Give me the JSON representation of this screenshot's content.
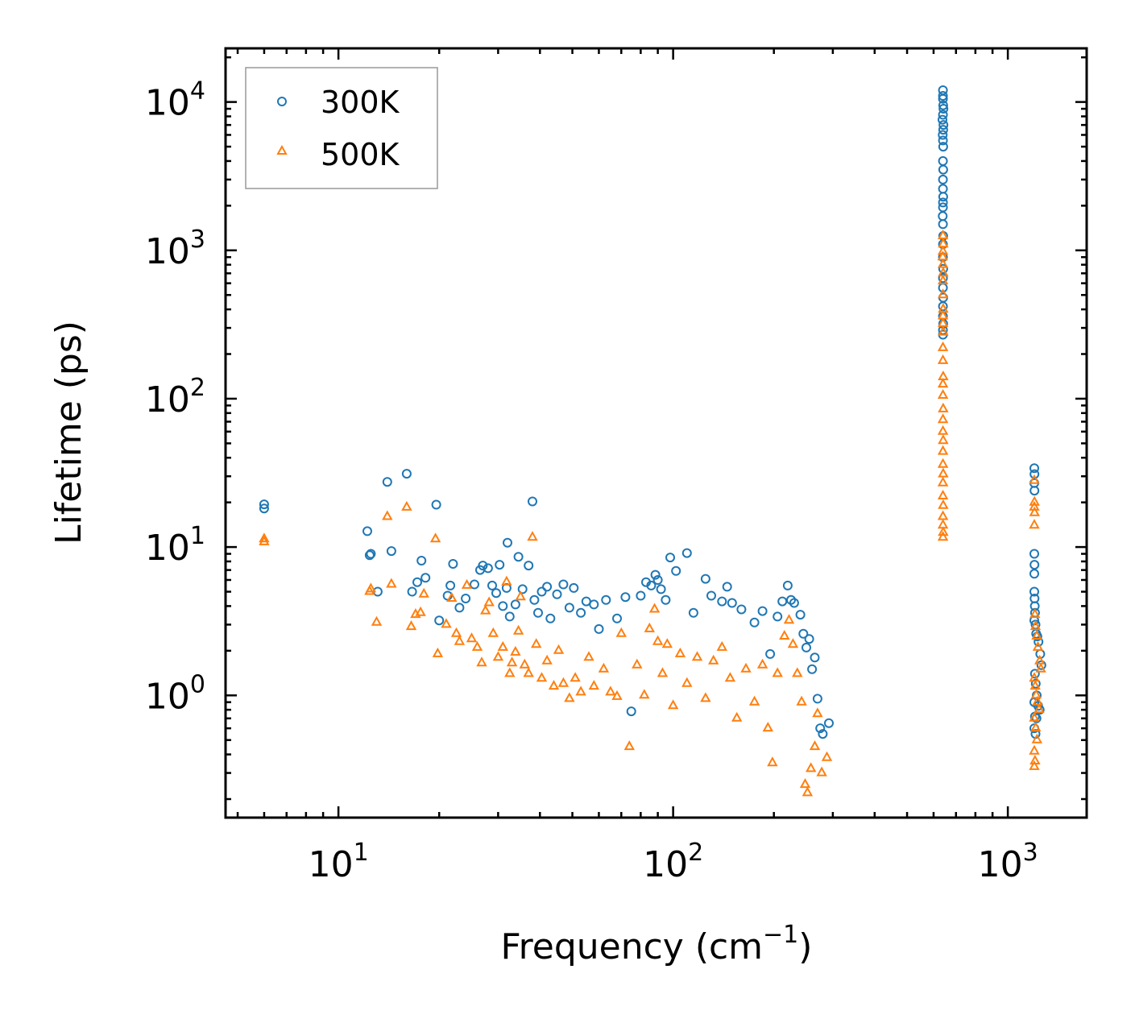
{
  "chart_data": {
    "type": "scatter",
    "title": "",
    "xlabel": "Frequency (cm",
    "xlabel_sup": "−1",
    "xlabel_suffix": ")",
    "ylabel": "Lifetime (ps)",
    "xscale": "log",
    "yscale": "log",
    "xlim": [
      4.6,
      1720
    ],
    "ylim": [
      0.15,
      23000
    ],
    "x_ticks": [
      {
        "value": 10,
        "base": "10",
        "exp": "1"
      },
      {
        "value": 100,
        "base": "10",
        "exp": "2"
      },
      {
        "value": 1000,
        "base": "10",
        "exp": "3"
      }
    ],
    "y_ticks": [
      {
        "value": 1,
        "base": "10",
        "exp": "0"
      },
      {
        "value": 10,
        "base": "10",
        "exp": "1"
      },
      {
        "value": 100,
        "base": "10",
        "exp": "2"
      },
      {
        "value": 1000,
        "base": "10",
        "exp": "3"
      },
      {
        "value": 10000,
        "base": "10",
        "exp": "4"
      }
    ],
    "legend": {
      "position": "top-left"
    },
    "series": [
      {
        "name": "300K",
        "marker": "circle",
        "color": "#1f77b4",
        "points": [
          [
            6.0,
            18.2
          ],
          [
            6.0,
            19.4
          ],
          [
            12.2,
            12.8
          ],
          [
            12.4,
            8.8
          ],
          [
            12.5,
            9.0
          ],
          [
            13.1,
            5.0
          ],
          [
            14.0,
            27.5
          ],
          [
            14.4,
            9.4
          ],
          [
            16.0,
            31.2
          ],
          [
            16.6,
            5.0
          ],
          [
            17.2,
            5.8
          ],
          [
            17.7,
            8.1
          ],
          [
            18.2,
            6.2
          ],
          [
            19.6,
            19.3
          ],
          [
            20.0,
            3.2
          ],
          [
            21.2,
            4.7
          ],
          [
            21.6,
            5.5
          ],
          [
            22.0,
            7.7
          ],
          [
            23.0,
            3.9
          ],
          [
            24.0,
            4.5
          ],
          [
            25.5,
            5.6
          ],
          [
            26.5,
            7.0
          ],
          [
            27.0,
            7.5
          ],
          [
            28.0,
            7.2
          ],
          [
            28.8,
            5.5
          ],
          [
            29.6,
            4.9
          ],
          [
            30.3,
            7.6
          ],
          [
            31.0,
            4.0
          ],
          [
            31.8,
            5.3
          ],
          [
            32.0,
            10.7
          ],
          [
            32.5,
            3.4
          ],
          [
            33.8,
            4.1
          ],
          [
            34.5,
            8.6
          ],
          [
            35.5,
            5.2
          ],
          [
            37.0,
            7.5
          ],
          [
            38.0,
            20.3
          ],
          [
            38.5,
            4.4
          ],
          [
            39.5,
            3.6
          ],
          [
            40.5,
            5.0
          ],
          [
            42.0,
            5.4
          ],
          [
            43.0,
            3.3
          ],
          [
            45.0,
            4.8
          ],
          [
            47.0,
            5.6
          ],
          [
            49.0,
            3.9
          ],
          [
            50.5,
            5.3
          ],
          [
            53.0,
            3.6
          ],
          [
            55.0,
            4.3
          ],
          [
            58.0,
            4.1
          ],
          [
            60.0,
            2.8
          ],
          [
            63.0,
            4.4
          ],
          [
            68.0,
            3.3
          ],
          [
            72.0,
            4.6
          ],
          [
            75.0,
            0.78
          ],
          [
            80.0,
            4.7
          ],
          [
            83.0,
            5.8
          ],
          [
            86.0,
            5.5
          ],
          [
            88.5,
            6.5
          ],
          [
            90.0,
            6.0
          ],
          [
            92.0,
            5.2
          ],
          [
            95.0,
            4.4
          ],
          [
            98.0,
            8.5
          ],
          [
            102.0,
            6.9
          ],
          [
            110.0,
            9.1
          ],
          [
            115.0,
            3.6
          ],
          [
            125.0,
            6.1
          ],
          [
            130.0,
            4.7
          ],
          [
            140.0,
            4.3
          ],
          [
            145.0,
            5.4
          ],
          [
            150.0,
            4.2
          ],
          [
            160.0,
            3.8
          ],
          [
            175.0,
            3.1
          ],
          [
            185.0,
            3.7
          ],
          [
            195.0,
            1.9
          ],
          [
            205.0,
            3.4
          ],
          [
            212.0,
            4.3
          ],
          [
            220.0,
            5.5
          ],
          [
            225.0,
            4.4
          ],
          [
            230.0,
            4.2
          ],
          [
            240.0,
            3.5
          ],
          [
            245.0,
            2.6
          ],
          [
            250.0,
            2.1
          ],
          [
            255.0,
            2.4
          ],
          [
            260.0,
            1.5
          ],
          [
            265.0,
            1.8
          ],
          [
            270.0,
            0.95
          ],
          [
            275.0,
            0.6
          ],
          [
            280.0,
            0.55
          ],
          [
            292.0,
            0.65
          ],
          [
            640.0,
            12000
          ],
          [
            640.0,
            11000
          ],
          [
            640.0,
            10500
          ],
          [
            641.0,
            9500
          ],
          [
            642.0,
            9000
          ],
          [
            640.0,
            8200
          ],
          [
            638.0,
            7600
          ],
          [
            642.0,
            7000
          ],
          [
            641.0,
            6500
          ],
          [
            639.0,
            6000
          ],
          [
            640.0,
            5500
          ],
          [
            641.0,
            5000
          ],
          [
            640.0,
            4000
          ],
          [
            641.0,
            3500
          ],
          [
            640.0,
            3000
          ],
          [
            640.0,
            2600
          ],
          [
            641.0,
            2300
          ],
          [
            640.0,
            2100
          ],
          [
            640.0,
            1950
          ],
          [
            639.0,
            1700
          ],
          [
            640.0,
            1500
          ],
          [
            641.0,
            1250
          ],
          [
            640.0,
            1100
          ],
          [
            640.0,
            900
          ],
          [
            641.0,
            750
          ],
          [
            640.0,
            650
          ],
          [
            640.0,
            560
          ],
          [
            641.0,
            480
          ],
          [
            640.0,
            420
          ],
          [
            640.0,
            360
          ],
          [
            641.0,
            320
          ],
          [
            640.0,
            290
          ],
          [
            640.0,
            270
          ],
          [
            1200.0,
            34
          ],
          [
            1201.0,
            31
          ],
          [
            1200.0,
            27
          ],
          [
            1201.0,
            24
          ],
          [
            1200.0,
            9.0
          ],
          [
            1201.0,
            7.6
          ],
          [
            1200.0,
            6.6
          ],
          [
            1200.0,
            5.0
          ],
          [
            1202.0,
            4.5
          ],
          [
            1204.0,
            4.0
          ],
          [
            1206.0,
            3.6
          ],
          [
            1200.0,
            3.2
          ],
          [
            1210.0,
            3.0
          ],
          [
            1215.0,
            2.6
          ],
          [
            1225.0,
            2.5
          ],
          [
            1235.0,
            2.3
          ],
          [
            1250.0,
            1.9
          ],
          [
            1260.0,
            1.6
          ],
          [
            1205.0,
            1.4
          ],
          [
            1212.0,
            1.2
          ],
          [
            1220.0,
            1.0
          ],
          [
            1200.0,
            0.9
          ],
          [
            1232.0,
            0.85
          ],
          [
            1245.0,
            0.8
          ],
          [
            1205.0,
            0.72
          ],
          [
            1218.0,
            0.7
          ],
          [
            1200.0,
            0.6
          ],
          [
            1210.0,
            0.55
          ]
        ]
      },
      {
        "name": "500K",
        "marker": "triangle",
        "color": "#ff7f0e",
        "points": [
          [
            6.0,
            10.8
          ],
          [
            6.0,
            11.3
          ],
          [
            12.4,
            5.0
          ],
          [
            12.5,
            5.2
          ],
          [
            13.0,
            3.1
          ],
          [
            14.0,
            16.0
          ],
          [
            14.4,
            5.6
          ],
          [
            16.0,
            18.5
          ],
          [
            16.5,
            2.9
          ],
          [
            17.0,
            3.5
          ],
          [
            17.6,
            3.6
          ],
          [
            18.0,
            4.8
          ],
          [
            19.5,
            11.3
          ],
          [
            19.8,
            1.9
          ],
          [
            21.0,
            3.0
          ],
          [
            21.8,
            4.5
          ],
          [
            22.5,
            2.6
          ],
          [
            23.0,
            2.3
          ],
          [
            24.2,
            5.5
          ],
          [
            25.0,
            2.4
          ],
          [
            26.0,
            2.1
          ],
          [
            26.8,
            1.65
          ],
          [
            27.5,
            3.7
          ],
          [
            28.2,
            4.2
          ],
          [
            29.0,
            2.6
          ],
          [
            30.0,
            1.8
          ],
          [
            31.0,
            2.1
          ],
          [
            31.8,
            5.8
          ],
          [
            32.5,
            1.4
          ],
          [
            33.0,
            1.65
          ],
          [
            33.8,
            1.95
          ],
          [
            34.5,
            2.7
          ],
          [
            35.0,
            4.6
          ],
          [
            36.0,
            1.6
          ],
          [
            37.0,
            1.4
          ],
          [
            38.0,
            11.6
          ],
          [
            39.0,
            2.2
          ],
          [
            40.5,
            1.3
          ],
          [
            42.0,
            1.7
          ],
          [
            44.0,
            1.15
          ],
          [
            45.5,
            2.0
          ],
          [
            47.0,
            1.2
          ],
          [
            49.0,
            0.95
          ],
          [
            51.0,
            1.3
          ],
          [
            53.0,
            1.05
          ],
          [
            56.0,
            1.8
          ],
          [
            58.0,
            1.15
          ],
          [
            62.0,
            1.5
          ],
          [
            65.0,
            1.05
          ],
          [
            68.0,
            0.98
          ],
          [
            70.0,
            2.6
          ],
          [
            74.0,
            0.45
          ],
          [
            78.0,
            1.6
          ],
          [
            82.0,
            1.0
          ],
          [
            85.0,
            2.8
          ],
          [
            88.0,
            3.8
          ],
          [
            90.0,
            2.3
          ],
          [
            93.0,
            1.4
          ],
          [
            96.0,
            2.2
          ],
          [
            100.0,
            0.85
          ],
          [
            105.0,
            1.9
          ],
          [
            110.0,
            1.2
          ],
          [
            118.0,
            1.8
          ],
          [
            125.0,
            0.95
          ],
          [
            132.0,
            1.7
          ],
          [
            140.0,
            2.1
          ],
          [
            148.0,
            1.3
          ],
          [
            155.0,
            0.7
          ],
          [
            165.0,
            1.5
          ],
          [
            175.0,
            0.9
          ],
          [
            185.0,
            1.6
          ],
          [
            192.0,
            0.6
          ],
          [
            198.0,
            0.35
          ],
          [
            205.0,
            1.4
          ],
          [
            215.0,
            2.5
          ],
          [
            222.0,
            3.2
          ],
          [
            228.0,
            2.2
          ],
          [
            235.0,
            1.4
          ],
          [
            242.0,
            0.9
          ],
          [
            248.0,
            0.25
          ],
          [
            252.0,
            0.22
          ],
          [
            258.0,
            0.32
          ],
          [
            265.0,
            0.45
          ],
          [
            270.0,
            0.75
          ],
          [
            278.0,
            0.3
          ],
          [
            288.0,
            0.38
          ],
          [
            640.0,
            1250
          ],
          [
            641.0,
            1100
          ],
          [
            640.0,
            980
          ],
          [
            639.0,
            900
          ],
          [
            640.0,
            800
          ],
          [
            641.0,
            700
          ],
          [
            640.0,
            620
          ],
          [
            640.0,
            500
          ],
          [
            641.0,
            400
          ],
          [
            640.0,
            360
          ],
          [
            640.0,
            320
          ],
          [
            641.0,
            280
          ],
          [
            640.0,
            220
          ],
          [
            640.0,
            180
          ],
          [
            641.0,
            140
          ],
          [
            640.0,
            125
          ],
          [
            640.0,
            105
          ],
          [
            641.0,
            85
          ],
          [
            640.0,
            72
          ],
          [
            640.0,
            60
          ],
          [
            641.0,
            52
          ],
          [
            640.0,
            44
          ],
          [
            640.0,
            36
          ],
          [
            641.0,
            31
          ],
          [
            640.0,
            27
          ],
          [
            640.0,
            22
          ],
          [
            641.0,
            19
          ],
          [
            640.0,
            16
          ],
          [
            640.0,
            14
          ],
          [
            641.0,
            12.5
          ],
          [
            640.0,
            11.6
          ],
          [
            1200.0,
            28
          ],
          [
            1201.0,
            20
          ],
          [
            1200.0,
            18.5
          ],
          [
            1202.0,
            17
          ],
          [
            1200.0,
            14
          ],
          [
            1205.0,
            3.5
          ],
          [
            1210.0,
            2.9
          ],
          [
            1220.0,
            2.5
          ],
          [
            1230.0,
            2.1
          ],
          [
            1245.0,
            1.7
          ],
          [
            1255.0,
            1.5
          ],
          [
            1200.0,
            1.3
          ],
          [
            1208.0,
            1.15
          ],
          [
            1215.0,
            1.0
          ],
          [
            1226.0,
            0.9
          ],
          [
            1240.0,
            0.8
          ],
          [
            1200.0,
            0.7
          ],
          [
            1212.0,
            0.6
          ],
          [
            1222.0,
            0.5
          ],
          [
            1200.0,
            0.42
          ],
          [
            1206.0,
            0.36
          ],
          [
            1200.0,
            0.33
          ]
        ]
      }
    ]
  }
}
